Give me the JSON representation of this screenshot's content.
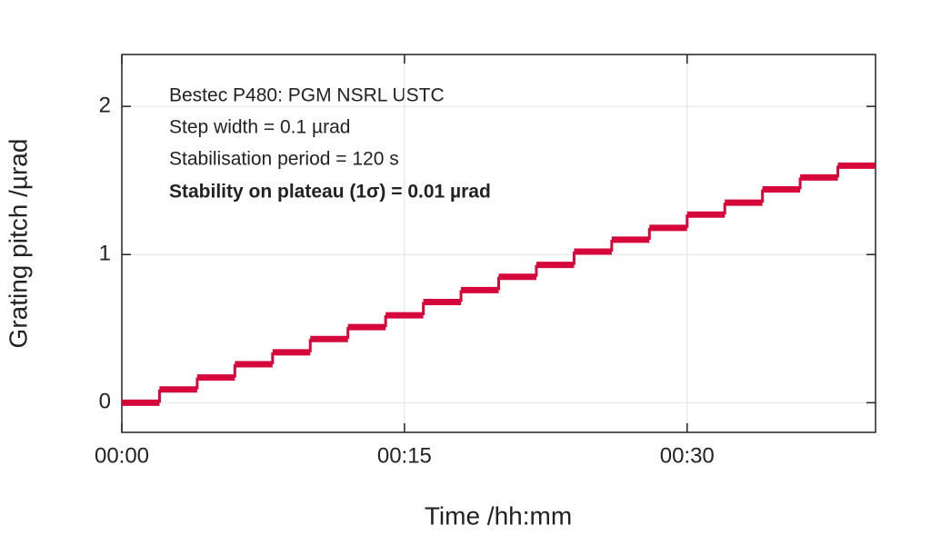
{
  "chart_data": {
    "type": "step",
    "x_label": "Time /hh:mm",
    "y_label": "Grating pitch /µrad",
    "annotations": [
      "Bestec P480: PGM NSRL USTC",
      "Step width = 0.1 µrad",
      "Stabilisation period = 120 s",
      "Stability on plateau (1σ) = 0.01 µrad"
    ],
    "xlim": [
      0,
      40
    ],
    "ylim": [
      -0.2,
      2.35
    ],
    "xticks": [
      {
        "value": 0,
        "label": "00:00"
      },
      {
        "value": 15,
        "label": "00:15"
      },
      {
        "value": 30,
        "label": "00:30"
      }
    ],
    "yticks": [
      0,
      1,
      2
    ],
    "grid": true,
    "series": [
      {
        "color": "#d6083b",
        "x": [
          0,
          2,
          4,
          6,
          8,
          10,
          12,
          14,
          16,
          18,
          20,
          22,
          24,
          26,
          28,
          30,
          32,
          34,
          36,
          38
        ],
        "values": [
          0,
          0.09,
          0.17,
          0.26,
          0.34,
          0.43,
          0.51,
          0.59,
          0.68,
          0.76,
          0.85,
          0.93,
          1.02,
          1.1,
          1.18,
          1.27,
          1.35,
          1.44,
          1.52,
          1.6
        ]
      }
    ]
  }
}
